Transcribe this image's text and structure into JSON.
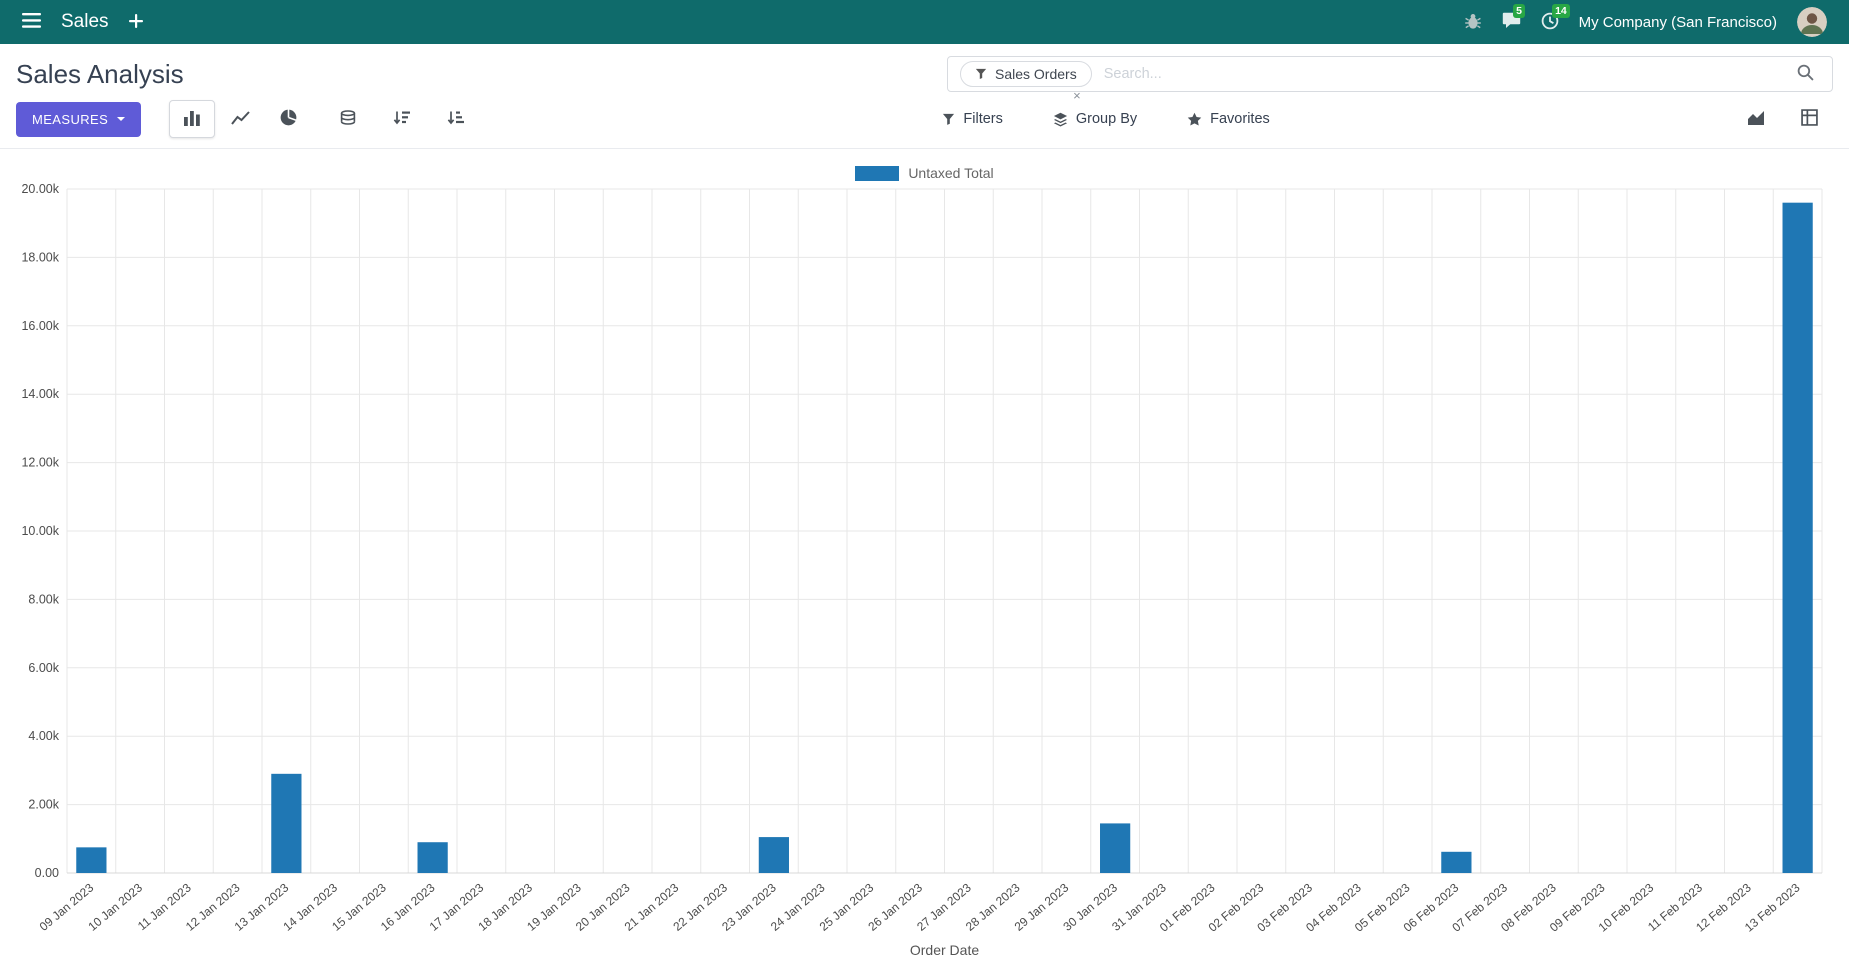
{
  "colors": {
    "navbar": "#0f6b6b",
    "accent": "#5f5bd7",
    "badge": "#28a745",
    "bar": "#1f77b4"
  },
  "navbar": {
    "app_name": "Sales",
    "company": "My Company (San Francisco)",
    "messages_badge": "5",
    "activities_badge": "14"
  },
  "control_panel": {
    "title": "Sales Analysis",
    "measures_label": "MEASURES",
    "filters_label": "Filters",
    "group_by_label": "Group By",
    "favorites_label": "Favorites",
    "search": {
      "facet": "Sales Orders",
      "placeholder": "Search...",
      "remove_glyph": "×"
    }
  },
  "icons": {
    "menu": "hamburger",
    "add": "+",
    "bug": "debug-bug",
    "messages": "chat-bubble",
    "activities": "clock",
    "search": "magnifier",
    "filter": "funnel",
    "group_by": "layers",
    "favorites": "star",
    "bar_chart": "bars",
    "line_chart": "polyline",
    "pie_chart": "pie",
    "stacked": "database-stack",
    "sort_desc": "arrow-down-bars-desc",
    "sort_asc": "arrow-down-bars-asc",
    "graph_view": "area-chart",
    "pivot_view": "grid-table"
  },
  "chart_data": {
    "type": "bar",
    "title": "",
    "xlabel": "Order Date",
    "ylabel": "",
    "ylim": [
      0,
      20000
    ],
    "ytick_step": 2000,
    "ytick_labels": [
      "0.00",
      "2.00k",
      "4.00k",
      "6.00k",
      "8.00k",
      "10.00k",
      "12.00k",
      "14.00k",
      "16.00k",
      "18.00k",
      "20.00k"
    ],
    "grid": true,
    "legend_position": "top",
    "categories": [
      "09 Jan 2023",
      "10 Jan 2023",
      "11 Jan 2023",
      "12 Jan 2023",
      "13 Jan 2023",
      "14 Jan 2023",
      "15 Jan 2023",
      "16 Jan 2023",
      "17 Jan 2023",
      "18 Jan 2023",
      "19 Jan 2023",
      "20 Jan 2023",
      "21 Jan 2023",
      "22 Jan 2023",
      "23 Jan 2023",
      "24 Jan 2023",
      "25 Jan 2023",
      "26 Jan 2023",
      "27 Jan 2023",
      "28 Jan 2023",
      "29 Jan 2023",
      "30 Jan 2023",
      "31 Jan 2023",
      "01 Feb 2023",
      "02 Feb 2023",
      "03 Feb 2023",
      "04 Feb 2023",
      "05 Feb 2023",
      "06 Feb 2023",
      "07 Feb 2023",
      "08 Feb 2023",
      "09 Feb 2023",
      "10 Feb 2023",
      "11 Feb 2023",
      "12 Feb 2023",
      "13 Feb 2023"
    ],
    "series": [
      {
        "name": "Untaxed Total",
        "color": "#1f77b4",
        "values": [
          750,
          0,
          0,
          0,
          2900,
          0,
          0,
          900,
          0,
          0,
          0,
          0,
          0,
          0,
          1050,
          0,
          0,
          0,
          0,
          0,
          0,
          1450,
          0,
          0,
          0,
          0,
          0,
          0,
          620,
          0,
          0,
          0,
          0,
          0,
          0,
          19600
        ]
      }
    ]
  }
}
